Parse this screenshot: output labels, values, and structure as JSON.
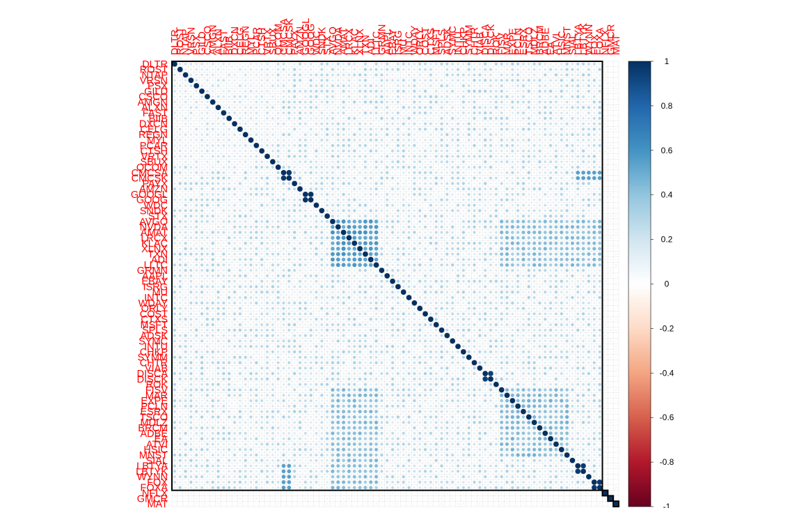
{
  "chart_data": {
    "type": "heatmap",
    "subtype": "correlation-circle-matrix",
    "order": "hclust",
    "labels": [
      "DLTR",
      "ROST",
      "NTAP",
      "VRSN",
      "PSX",
      "GILD",
      "CSCO",
      "AMGN",
      "ALXN",
      "FAST",
      "BIIB",
      "DXCN",
      "CELG",
      "REGN",
      "MYL",
      "PCAR",
      "CTSH",
      "VRTX",
      "SBUX",
      "QCOM",
      "CMCSA",
      "CMCSK",
      "PAYX",
      "AMZN",
      "GOOGL",
      "GOOG",
      "WDC",
      "SNDK",
      "STX",
      "AVGO",
      "NVDA",
      "AMAT",
      "LRCX",
      "KLAC",
      "XLNX",
      "TXN",
      "ADI",
      "LLTC",
      "GRMN",
      "AAPL",
      "EBAY",
      "ISRG",
      "MU",
      "INTC",
      "WDAY",
      "ORLY",
      "COST",
      "CTXS",
      "MSFT",
      "SPLS",
      "ADSK",
      "SYMC",
      "INTU",
      "CHKP",
      "SYMM",
      "CHTR",
      "VIAB",
      "DISCA",
      "DISCK",
      "ROK",
      "FISV",
      "MAR",
      "EXPE",
      "PCLN",
      "ESRX",
      "TSCO",
      "MDLZ",
      "BRCM",
      "ADBE",
      "EA",
      "ATVI",
      "HSIC",
      "MNST",
      "SIAL",
      "LBTYA",
      "LBTYK",
      "WYNN",
      "FOX",
      "FOXA",
      "NFLX",
      "GMCR",
      "MAT"
    ],
    "pairs": [
      {
        "group": [
          "CMCSA",
          "CMCSK"
        ],
        "value": 0.97
      },
      {
        "group": [
          "LBTYA",
          "LBTYK"
        ],
        "value": 0.96
      },
      {
        "group": [
          "FOX",
          "FOXA"
        ],
        "value": 0.97
      },
      {
        "group": [
          "GOOGL",
          "GOOG"
        ],
        "value": 0.99
      },
      {
        "group": [
          "DISCA",
          "DISCK"
        ],
        "value": 0.95
      }
    ],
    "blocks": [
      {
        "from": "AVGO",
        "to": "LLTC",
        "value": 0.62
      },
      {
        "from": "FISV",
        "to": "MNST",
        "value": 0.45
      },
      {
        "from": "CMCSA",
        "to": "CMCSK",
        "cross_with": "LBTYA-FOXA",
        "value": 0.55
      }
    ],
    "base_correlation": 0.22,
    "diagonal": 1,
    "rect_boxes": [
      {
        "from": "DLTR",
        "to": "FOXA"
      },
      {
        "from": "NFLX",
        "to": "NFLX"
      },
      {
        "from": "GMCR",
        "to": "GMCR"
      },
      {
        "from": "MAT",
        "to": "MAT"
      }
    ],
    "colorbar": {
      "min": -1,
      "max": 1,
      "ticks": [
        "1",
        "0.8",
        "0.6",
        "0.4",
        "0.2",
        "0",
        "-0.2",
        "-0.4",
        "-0.6",
        "-0.8",
        "-1"
      ],
      "colors": [
        "#67001F",
        "#B2182B",
        "#D6604D",
        "#F4A582",
        "#FDDBC7",
        "#FFFFFF",
        "#D1E5F0",
        "#92C5DE",
        "#4393C3",
        "#2166AC",
        "#053061"
      ]
    },
    "label_color": "#ff0000",
    "grid": true,
    "legend_position": "right"
  }
}
